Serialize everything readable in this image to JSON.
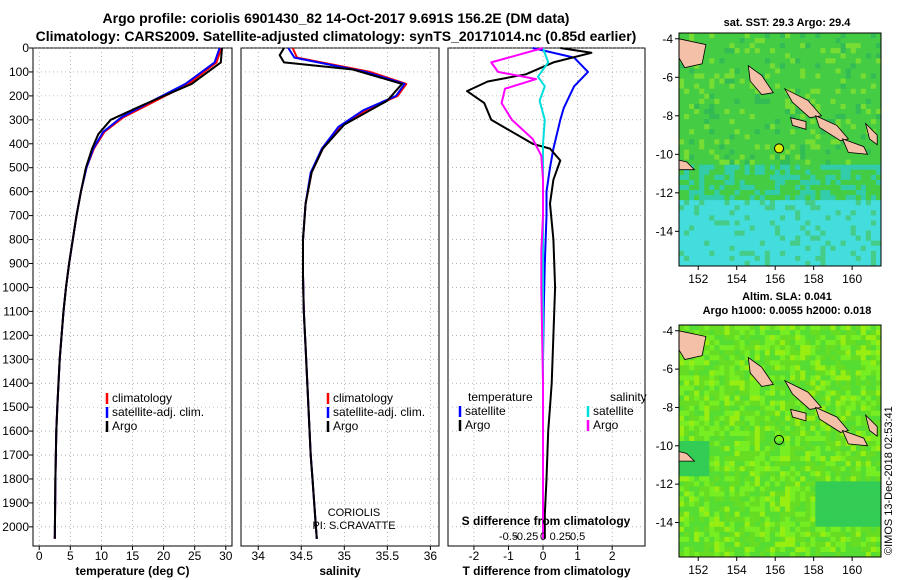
{
  "header": {
    "title_line1": "Argo profile: coriolis 6901430_82 14-Oct-2017 9.691S 156.2E (DM data)",
    "title_line2": "Climatology: CARS2009. Satellite-adjusted climatology: synTS_20171014.nc (0.85d earlier)"
  },
  "maps": {
    "sst_title": "sat. SST: 29.3 Argo: 29.4",
    "sla_title_line1": "Altim. SLA: 0.041",
    "sla_title_line2": "Argo h1000: 0.0055 h2000: 0.018",
    "x_ticks": [
      "152",
      "154",
      "156",
      "158",
      "160"
    ],
    "y_ticks": [
      "-4",
      "-6",
      "-8",
      "-10",
      "-12",
      "-14"
    ],
    "lon_range": [
      151,
      161.5
    ],
    "lat_range": [
      -15.8,
      -3.7
    ],
    "argo_position": {
      "lon": 156.2,
      "lat": -9.691
    },
    "colors": {
      "ocean_warm": "#44cc44",
      "ocean_cool": "#44dddd",
      "land": "#f4c0a8",
      "sla_green": "#66dd22"
    }
  },
  "stamp": "©IMOS 13-Dec-2018 02:53:41",
  "chart_data": [
    {
      "type": "line",
      "id": "temperature",
      "xlabel": "temperature (deg C)",
      "x_ticks": [
        "0",
        "5",
        "10",
        "15",
        "20",
        "25",
        "30"
      ],
      "xlim": [
        -1,
        31
      ],
      "ylim": [
        0,
        2080
      ],
      "y_ticks": [
        "0",
        "100",
        "200",
        "300",
        "400",
        "500",
        "600",
        "700",
        "800",
        "900",
        "1000",
        "1100",
        "1200",
        "1300",
        "1400",
        "1500",
        "1600",
        "1700",
        "1800",
        "1900",
        "2000"
      ],
      "legend": {
        "placement": "lower-middle",
        "entries": [
          "climatology",
          "satellite-adj. clim.",
          "Argo"
        ]
      },
      "series": [
        {
          "name": "climatology",
          "color": "#ff0000",
          "x": [
            29.3,
            28.5,
            24,
            18,
            13.5,
            10.5,
            8.8,
            7.6,
            6.7,
            6.0,
            5.4,
            4.8,
            4.3,
            3.9,
            3.6,
            3.3,
            3.1,
            2.9,
            2.75,
            2.6,
            2.5
          ],
          "y": [
            0,
            60,
            150,
            230,
            290,
            350,
            420,
            500,
            600,
            700,
            800,
            900,
            1000,
            1100,
            1200,
            1300,
            1400,
            1500,
            1600,
            1800,
            2050
          ]
        },
        {
          "name": "satellite-adj. clim.",
          "color": "#0000ff",
          "x": [
            29.0,
            28.2,
            23.5,
            17.5,
            13.2,
            10.3,
            8.7,
            7.6,
            6.7,
            6.0,
            5.4,
            4.8,
            4.3,
            3.9,
            3.6,
            3.3,
            3.1,
            2.9,
            2.75,
            2.6,
            2.5
          ],
          "y": [
            0,
            60,
            150,
            230,
            290,
            350,
            420,
            500,
            600,
            700,
            800,
            900,
            1000,
            1100,
            1200,
            1300,
            1400,
            1500,
            1600,
            1800,
            2050
          ]
        },
        {
          "name": "Argo",
          "color": "#000000",
          "x": [
            29.4,
            29.2,
            24.5,
            16.5,
            11.5,
            9.5,
            8.5,
            7.5,
            6.7,
            6.0,
            5.4,
            4.8,
            4.3,
            3.9,
            3.6,
            3.3,
            3.1,
            2.9,
            2.75,
            2.6,
            2.5
          ],
          "y": [
            0,
            60,
            150,
            240,
            300,
            360,
            420,
            500,
            600,
            700,
            800,
            900,
            1000,
            1100,
            1200,
            1300,
            1400,
            1500,
            1600,
            1800,
            2050
          ]
        }
      ]
    },
    {
      "type": "line",
      "id": "salinity",
      "xlabel": "salinity",
      "x_ticks": [
        "34",
        "34.5",
        "35",
        "35.5",
        "36"
      ],
      "xlim": [
        33.8,
        36.1
      ],
      "ylim": [
        0,
        2080
      ],
      "legend": {
        "placement": "lower-middle",
        "entries": [
          "climatology",
          "satellite-adj. clim.",
          "Argo"
        ]
      },
      "annotation_lines": [
        "CORIOLIS",
        "PI: S.CRAVATTE"
      ],
      "series": [
        {
          "name": "climatology",
          "color": "#ff0000",
          "x": [
            34.4,
            34.45,
            35.3,
            35.72,
            35.62,
            35.25,
            34.95,
            34.75,
            34.62,
            34.55,
            34.52,
            34.52,
            34.53,
            34.55,
            34.57,
            34.59,
            34.61,
            34.63,
            34.65,
            34.67,
            34.68
          ],
          "y": [
            0,
            40,
            100,
            150,
            200,
            260,
            330,
            420,
            520,
            650,
            800,
            950,
            1100,
            1250,
            1400,
            1550,
            1700,
            1800,
            1900,
            2000,
            2050
          ]
        },
        {
          "name": "satellite-adj. clim.",
          "color": "#0000ff",
          "x": [
            34.35,
            34.42,
            35.25,
            35.7,
            35.6,
            35.22,
            34.93,
            34.74,
            34.61,
            34.55,
            34.52,
            34.52,
            34.53,
            34.55,
            34.57,
            34.59,
            34.61,
            34.63,
            34.65,
            34.67,
            34.68
          ],
          "y": [
            0,
            40,
            100,
            150,
            200,
            260,
            330,
            420,
            520,
            650,
            800,
            950,
            1100,
            1250,
            1400,
            1550,
            1700,
            1800,
            1900,
            2000,
            2050
          ]
        },
        {
          "name": "Argo",
          "color": "#000000",
          "x": [
            34.3,
            34.25,
            34.3,
            35.1,
            35.67,
            35.5,
            35.0,
            34.75,
            34.62,
            34.55,
            34.52,
            34.52,
            34.53,
            34.55,
            34.57,
            34.59,
            34.61,
            34.63,
            34.65,
            34.67,
            34.68
          ],
          "y": [
            0,
            30,
            60,
            90,
            150,
            220,
            320,
            420,
            520,
            650,
            800,
            950,
            1100,
            1250,
            1400,
            1550,
            1700,
            1800,
            1900,
            2000,
            2050
          ]
        }
      ]
    },
    {
      "type": "line",
      "id": "differences",
      "xlabel": "T difference from climatology",
      "x_ticks": [
        "-2",
        "-1",
        "0",
        "1",
        "2"
      ],
      "xlim": [
        -2.75,
        2.95
      ],
      "top_xlabel": "S difference from climatology",
      "top_x_ticks": [
        "-0.5",
        "-0.25",
        "0",
        "0.25",
        "0.5"
      ],
      "ylim": [
        0,
        2080
      ],
      "legend": {
        "placement": "lower-middle",
        "temperature_header": "temperature",
        "salinity_header": "salinity",
        "temperature_entries": [
          "satellite",
          "Argo"
        ],
        "salinity_entries": [
          "satellite",
          "Argo"
        ]
      },
      "series": [
        {
          "name": "temperature satellite",
          "color": "#0000ff",
          "x": [
            -0.3,
            0.9,
            1.3,
            0.9,
            0.6,
            0.5,
            0.45,
            0.3,
            0.2,
            0.1,
            0.1,
            0.05,
            0.02,
            0,
            0,
            0,
            0,
            0,
            0
          ],
          "y": [
            0,
            40,
            100,
            160,
            250,
            300,
            330,
            420,
            500,
            600,
            700,
            900,
            1100,
            1300,
            1500,
            1700,
            1800,
            1900,
            2050
          ]
        },
        {
          "name": "temperature Argo",
          "color": "#000000",
          "x": [
            0.5,
            1.4,
            0.3,
            -0.5,
            -1.6,
            -2.2,
            -1.7,
            -1.5,
            -0.3,
            0.2,
            0.5,
            0.3,
            0.2,
            0.3,
            0.35,
            0.3,
            0.25,
            0.2,
            0.15,
            0.1,
            0.05,
            0.05
          ],
          "y": [
            0,
            20,
            60,
            110,
            140,
            180,
            230,
            300,
            400,
            420,
            470,
            550,
            650,
            800,
            1000,
            1200,
            1400,
            1500,
            1600,
            1800,
            1950,
            2050
          ]
        },
        {
          "name": "salinity satellite",
          "color": "#00dddd",
          "x": [
            0,
            0.15,
            -0.15,
            0.05,
            -0.1,
            0.05,
            0,
            0,
            0,
            0,
            0,
            0,
            0,
            0,
            0
          ],
          "y": [
            0,
            60,
            120,
            160,
            220,
            300,
            400,
            500,
            700,
            900,
            1100,
            1300,
            1500,
            1700,
            2050
          ]
        },
        {
          "name": "salinity Argo",
          "color": "#ff00ff",
          "x": [
            0,
            -1.5,
            -1.3,
            -0.2,
            -1.1,
            -1.2,
            -0.9,
            -0.3,
            -0.05,
            0,
            0,
            -0.05,
            -0.05,
            0,
            0
          ],
          "y": [
            0,
            60,
            100,
            130,
            170,
            230,
            300,
            380,
            450,
            550,
            700,
            850,
            1000,
            1400,
            2050
          ]
        }
      ]
    }
  ]
}
